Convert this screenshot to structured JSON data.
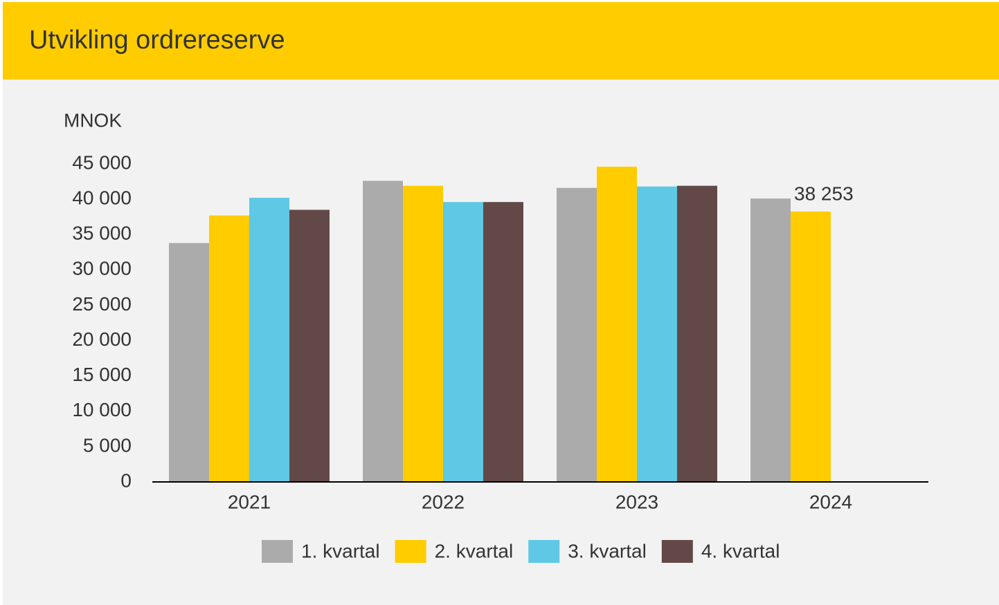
{
  "chart_data": {
    "type": "bar",
    "title": "Utvikling ordrereserve",
    "y_label": "MNOK",
    "categories": [
      "2021",
      "2022",
      "2023",
      "2024"
    ],
    "series": [
      {
        "name": "1. kvartal",
        "color": "#ababab",
        "values": [
          33800,
          42600,
          41600,
          40100
        ]
      },
      {
        "name": "2. kvartal",
        "color": "#ffcc00",
        "values": [
          37700,
          41900,
          44600,
          38253
        ],
        "value_labels": [
          null,
          null,
          null,
          "38 253"
        ]
      },
      {
        "name": "3. kvartal",
        "color": "#5ec8e5",
        "values": [
          40200,
          39600,
          41800,
          null
        ]
      },
      {
        "name": "4. kvartal",
        "color": "#634848",
        "values": [
          38500,
          39600,
          41900,
          null
        ]
      }
    ],
    "ylim": [
      0,
      45000
    ],
    "yticks": [
      0,
      {
        "value": 5000,
        "label": "5 000"
      },
      {
        "value": 10000,
        "label": "10 000"
      },
      {
        "value": 15000,
        "label": "15 000"
      },
      {
        "value": 20000,
        "label": "20 000"
      },
      {
        "value": 25000,
        "label": "25 000"
      },
      {
        "value": 30000,
        "label": "30 000"
      },
      {
        "value": 35000,
        "label": "35 000"
      },
      {
        "value": 40000,
        "label": "40 000"
      },
      {
        "value": 45000,
        "label": "45 000"
      }
    ],
    "grid": false
  }
}
